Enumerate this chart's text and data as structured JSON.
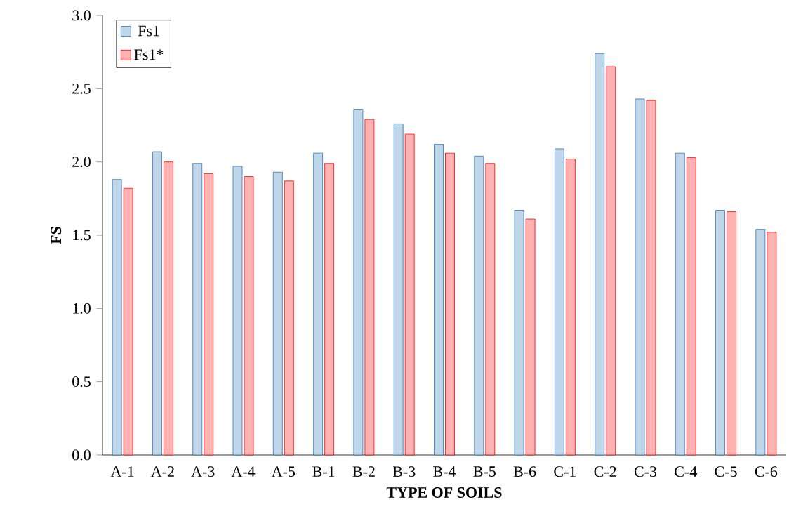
{
  "chart_data": {
    "type": "bar",
    "xlabel": "TYPE OF SOILS",
    "ylabel": "FS",
    "categories": [
      "A-1",
      "A-2",
      "A-3",
      "A-4",
      "A-5",
      "B-1",
      "B-2",
      "B-3",
      "B-4",
      "B-5",
      "B-6",
      "C-1",
      "C-2",
      "C-3",
      "C-4",
      "C-5",
      "C-6"
    ],
    "series": [
      {
        "name": "Fs1",
        "color": "#2e75b6",
        "values": [
          1.88,
          2.07,
          1.99,
          1.97,
          1.93,
          2.06,
          2.36,
          2.26,
          2.12,
          2.04,
          1.67,
          2.09,
          2.74,
          2.43,
          2.06,
          1.67,
          1.54
        ]
      },
      {
        "name": "Fs1*",
        "color": "#ff0000",
        "values": [
          1.82,
          2.0,
          1.92,
          1.9,
          1.87,
          1.99,
          2.29,
          2.19,
          2.06,
          1.99,
          1.61,
          2.02,
          2.65,
          2.42,
          2.03,
          1.66,
          1.52
        ]
      }
    ],
    "ylim": [
      0,
      3.0
    ],
    "yticks": [
      {
        "value": 0,
        "label": "0.0"
      },
      {
        "value": 0.5,
        "label": "0.5"
      },
      {
        "value": 1,
        "label": "1.0"
      },
      {
        "value": 1.5,
        "label": "1.5"
      },
      {
        "value": 2,
        "label": "2.0"
      },
      {
        "value": 2.5,
        "label": "2.5"
      },
      {
        "value": 3,
        "label": "3.0"
      }
    ],
    "grid": false,
    "legend": "top left"
  }
}
